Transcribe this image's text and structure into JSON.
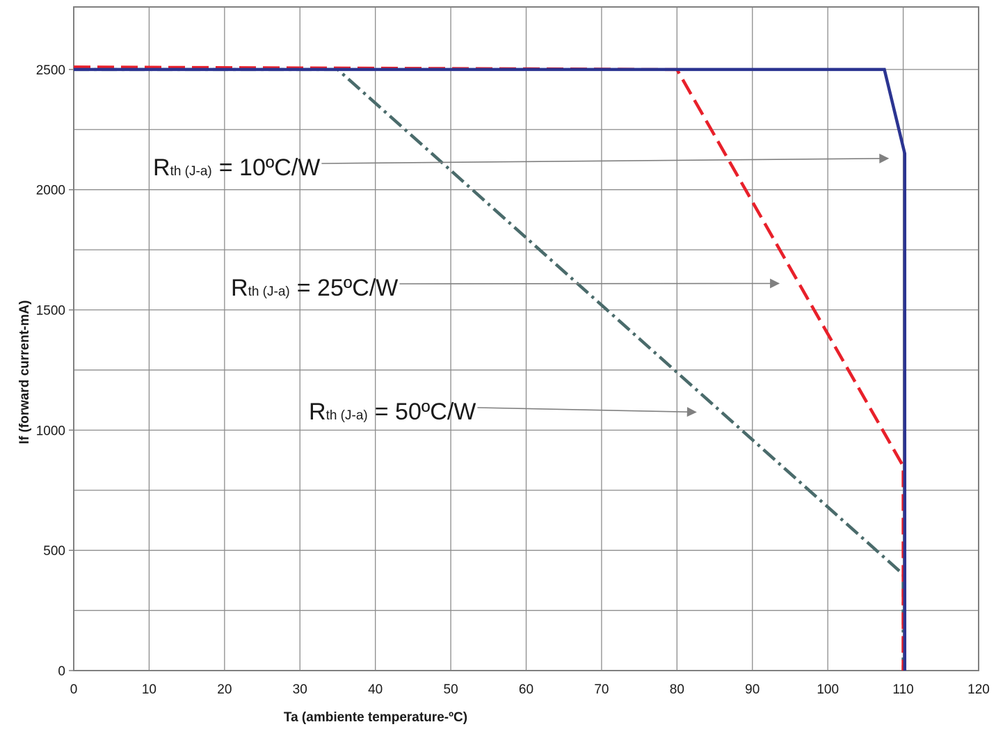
{
  "chart_data": {
    "type": "line",
    "title": "",
    "xlabel": "Ta (ambiente temperature-ºC)",
    "ylabel": "If (forward current-mA)",
    "xlim": [
      0,
      120
    ],
    "ylim": [
      0,
      2500
    ],
    "x_ticks": [
      0,
      10,
      20,
      30,
      40,
      50,
      60,
      70,
      80,
      90,
      100,
      110,
      120
    ],
    "x_tick_labels": [
      "0",
      "10",
      "20",
      "30",
      "40",
      "50",
      "60",
      "70",
      "80",
      "90",
      "100",
      "110",
      "120"
    ],
    "y_ticks": [
      0,
      500,
      1000,
      1500,
      2000,
      2500
    ],
    "y_tick_labels": [
      "0",
      "500",
      "1000",
      "1500",
      "2000",
      "2500"
    ],
    "y_minor_gridlines": [
      250,
      750,
      1250,
      1750,
      2250
    ],
    "grid": true,
    "series": [
      {
        "name": "Rth (J-a) = 10ºC/W",
        "color": "#2b3491",
        "style": "solid",
        "x": [
          0,
          107.5,
          110.2,
          110.2
        ],
        "y": [
          2500,
          2500,
          2150,
          0
        ]
      },
      {
        "name": "Rth (J-a) = 25ºC/W",
        "color": "#e8202a",
        "style": "dashed",
        "x": [
          0,
          80,
          110,
          110
        ],
        "y": [
          2510,
          2500,
          850,
          0
        ]
      },
      {
        "name": "Rth (J-a) = 50ºC/W",
        "color": "#4a6b6b",
        "style": "dash-dot",
        "x": [
          0,
          35,
          110,
          110
        ],
        "y": [
          2500,
          2500,
          400,
          0
        ]
      }
    ],
    "annotations": [
      {
        "main": "R",
        "sub": "th (J-a)",
        "rest": "= 10ºC/W",
        "arrow_target": {
          "x": 108,
          "y": 2130
        }
      },
      {
        "main": "R",
        "sub": "th (J-a)",
        "rest": "= 25ºC/W",
        "arrow_target": {
          "x": 93.5,
          "y": 1610
        }
      },
      {
        "main": "R",
        "sub": "th (J-a)",
        "rest": "= 50ºC/W",
        "arrow_target": {
          "x": 82.5,
          "y": 1075
        }
      }
    ],
    "arrow_color": "#808080"
  }
}
